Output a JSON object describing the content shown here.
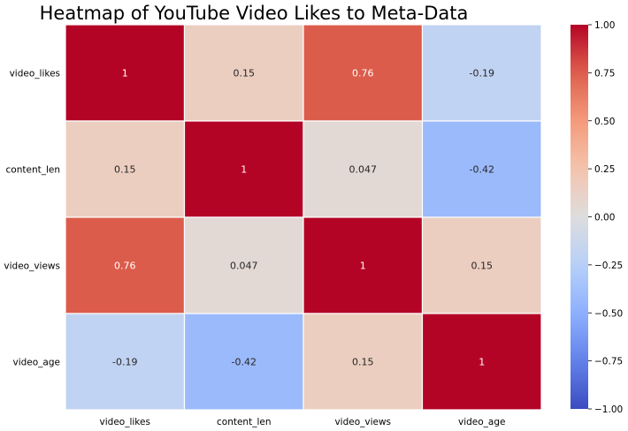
{
  "chart_data": {
    "type": "heatmap",
    "title": "Heatmap of YouTube Video Likes to Meta-Data",
    "row_labels": [
      "video_likes",
      "content_len",
      "video_views",
      "video_age"
    ],
    "col_labels": [
      "video_likes",
      "content_len",
      "video_views",
      "video_age"
    ],
    "values": [
      [
        1,
        0.15,
        0.76,
        -0.19
      ],
      [
        0.15,
        1,
        0.047,
        -0.42
      ],
      [
        0.76,
        0.047,
        1,
        0.15
      ],
      [
        -0.19,
        -0.42,
        0.15,
        1
      ]
    ],
    "value_labels": [
      [
        "1",
        "0.15",
        "0.76",
        "-0.19"
      ],
      [
        "0.15",
        "1",
        "0.047",
        "-0.42"
      ],
      [
        "0.76",
        "0.047",
        "1",
        "0.15"
      ],
      [
        "-0.19",
        "-0.42",
        "0.15",
        "1"
      ]
    ],
    "colormap": "coolwarm",
    "vmin": -1,
    "vmax": 1,
    "colorbar_ticks": [
      {
        "value": 1.0,
        "label": "1.00"
      },
      {
        "value": 0.75,
        "label": "0.75"
      },
      {
        "value": 0.5,
        "label": "0.50"
      },
      {
        "value": 0.25,
        "label": "0.25"
      },
      {
        "value": 0.0,
        "label": "0.00"
      },
      {
        "value": -0.25,
        "label": "−0.25"
      },
      {
        "value": -0.5,
        "label": "−0.50"
      },
      {
        "value": -0.75,
        "label": "−0.75"
      },
      {
        "value": -1.0,
        "label": "−1.00"
      }
    ],
    "grid": true,
    "colorbar_position": "right"
  }
}
